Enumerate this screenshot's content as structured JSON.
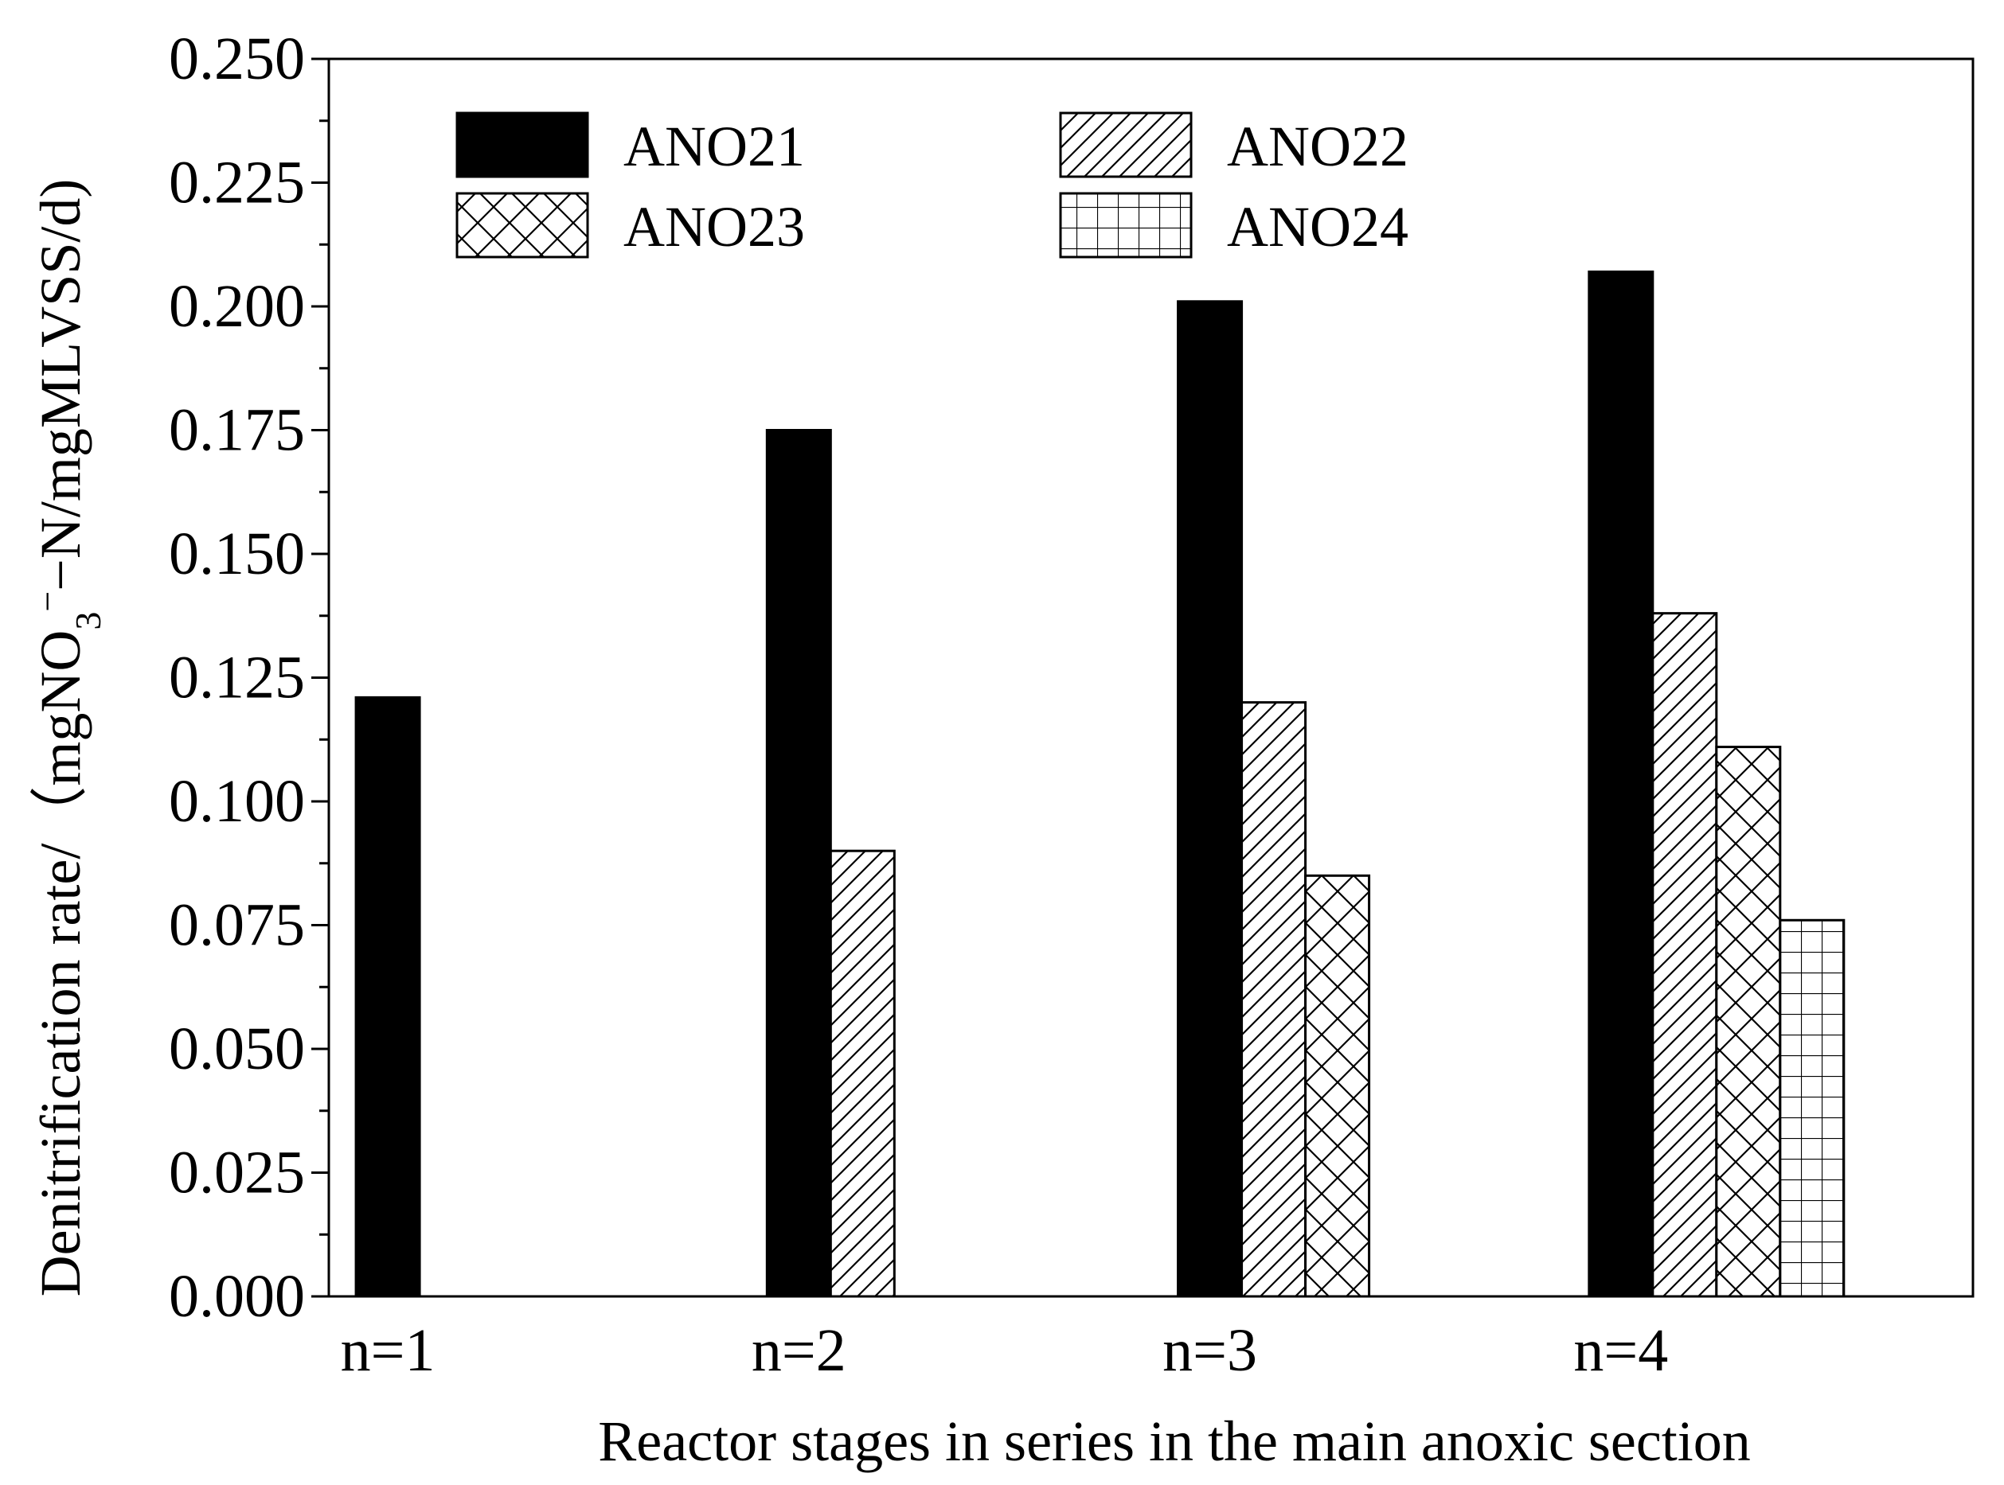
{
  "chart_data": {
    "type": "bar",
    "categories": [
      "n=1",
      "n=2",
      "n=3",
      "n=4"
    ],
    "series": [
      {
        "name": "ANO21",
        "pattern": "solid",
        "values": [
          0.121,
          0.175,
          0.201,
          0.207
        ]
      },
      {
        "name": "ANO22",
        "pattern": "diagonal-hatch",
        "values": [
          null,
          0.09,
          0.12,
          0.138
        ]
      },
      {
        "name": "ANO23",
        "pattern": "crosshatch",
        "values": [
          null,
          null,
          0.085,
          0.111
        ]
      },
      {
        "name": "ANO24",
        "pattern": "grid",
        "values": [
          null,
          null,
          null,
          0.076
        ]
      }
    ],
    "xlabel": "Reactor stages in series in the main anoxic section",
    "ylabel": {
      "prefix": "Denitrification rate/（mgNO",
      "sub": "3",
      "sup": "−",
      "suffix": "−N/mgMLVSS/d)"
    },
    "ylim": [
      0,
      0.25
    ],
    "yticks": [
      "0.000",
      "0.025",
      "0.050",
      "0.075",
      "0.100",
      "0.125",
      "0.150",
      "0.175",
      "0.200",
      "0.225",
      "0.250"
    ],
    "grid": false,
    "legend_position": "top-left inside, two columns",
    "colors": {
      "bar_fill": "#000000",
      "pattern_stroke": "#000000",
      "background": "#ffffff"
    }
  }
}
